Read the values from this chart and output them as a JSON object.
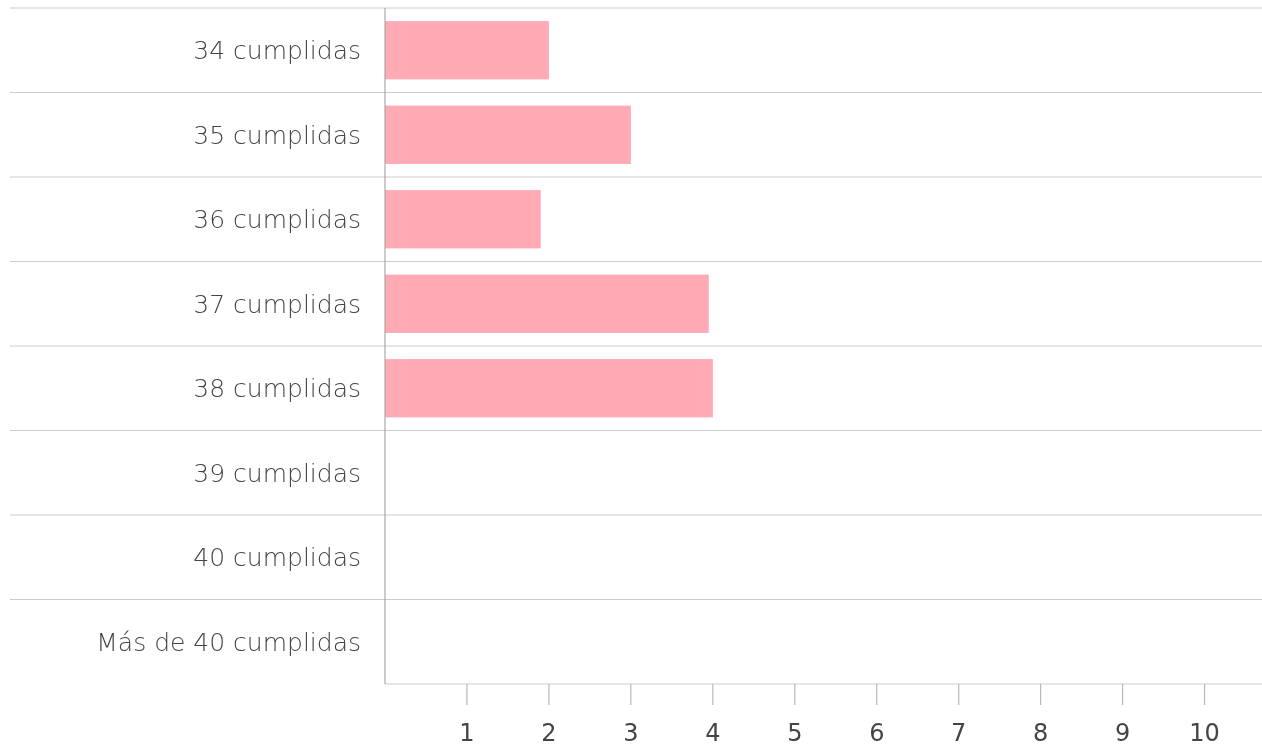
{
  "chart_data": {
    "type": "bar",
    "orientation": "horizontal",
    "categories": [
      "34 cumplidas",
      "35 cumplidas",
      "36 cumplidas",
      "37 cumplidas",
      "38 cumplidas",
      "39 cumplidas",
      "40 cumplidas",
      "Más de 40 cumplidas"
    ],
    "values": [
      2,
      3,
      1.9,
      3.95,
      4,
      null,
      null,
      null
    ],
    "color": "#ffaab5",
    "xlim": [
      0,
      10.7
    ],
    "xticks": [
      1,
      2,
      3,
      4,
      5,
      6,
      7,
      8,
      9,
      10
    ]
  }
}
